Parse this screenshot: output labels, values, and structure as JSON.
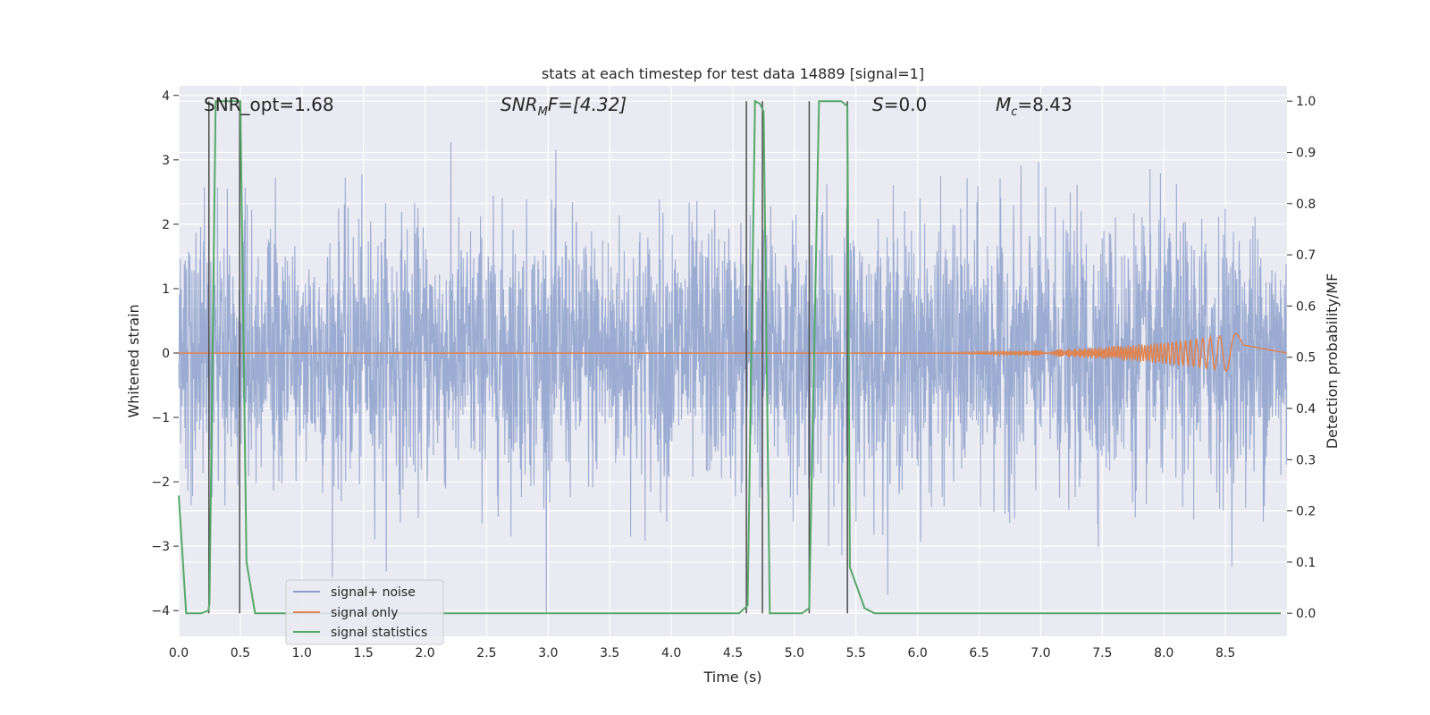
{
  "chart_data": {
    "type": "line",
    "title": "stats at each timestep for test data 14889 [signal=1]",
    "xlabel": "Time (s)",
    "ylabel_left": "Whitened strain",
    "ylabel_right": "Detection probability/MF",
    "xlim": [
      0,
      9.0
    ],
    "ylim_left": [
      -4.4,
      4.15
    ],
    "ylim_right": [
      -0.045,
      1.03
    ],
    "x_ticks": [
      "0.0",
      "0.5",
      "1.0",
      "1.5",
      "2.0",
      "2.5",
      "3.0",
      "3.5",
      "4.0",
      "4.5",
      "5.0",
      "5.5",
      "6.0",
      "6.5",
      "7.0",
      "7.5",
      "8.0",
      "8.5"
    ],
    "y_ticks_left": [
      "4",
      "3",
      "2",
      "1",
      "0",
      "−1",
      "−2",
      "−3",
      "−4"
    ],
    "y_ticks_right": [
      "1.0",
      "0.9",
      "0.8",
      "0.7",
      "0.6",
      "0.5",
      "0.4",
      "0.3",
      "0.2",
      "0.1",
      "0.0"
    ],
    "grid": true,
    "legend_position": "lower-left",
    "annotations": {
      "snr_opt": "SNR_opt=1.68",
      "snr_mf_base": "SNR",
      "snr_mf_sub": "M",
      "snr_mf_rest": "F=[4.32]",
      "s_sym": "S",
      "s_val": "=0.0",
      "mc_base": "M",
      "mc_sub": "c",
      "mc_val": "=8.43"
    },
    "series": [
      {
        "name": "signal+ noise",
        "color": "#8da0cb",
        "description_scale": 1.0
      },
      {
        "name": "signal only",
        "color": "#dd8452",
        "end_time": 8.65
      },
      {
        "name": "signal statistics",
        "color": "#55a868",
        "x": [
          0.0,
          0.06,
          0.18,
          0.24,
          0.25,
          0.3,
          0.5,
          0.55,
          0.62,
          4.55,
          4.62,
          4.68,
          4.72,
          4.75,
          4.8,
          5.06,
          5.12,
          5.2,
          5.38,
          5.43,
          5.45,
          5.57,
          5.65,
          8.95
        ],
        "y": [
          0.23,
          0.0,
          0.0,
          0.005,
          0.02,
          1.0,
          1.0,
          0.1,
          0.0,
          0.0,
          0.015,
          1.0,
          0.995,
          0.98,
          0.0,
          0.0,
          0.01,
          1.0,
          1.0,
          0.99,
          0.09,
          0.01,
          0.0,
          0.0
        ]
      }
    ],
    "vlines": [
      0.245,
      0.495,
      4.61,
      4.74,
      5.12,
      5.43
    ],
    "vline_color": "#4c4c4c"
  }
}
